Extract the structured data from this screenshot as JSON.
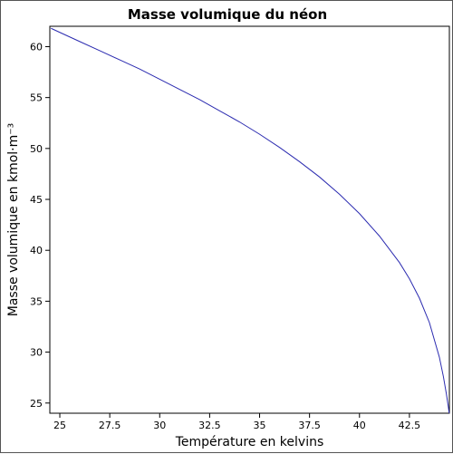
{
  "chart_data": {
    "type": "line",
    "title": "Masse volumique du néon",
    "xlabel": "Température en kelvins",
    "ylabel": "Masse volumique en kmol·m⁻³",
    "xlim": [
      24.5,
      44.5
    ],
    "ylim": [
      24,
      62
    ],
    "xticks": [
      25,
      27.5,
      30,
      32.5,
      35,
      37.5,
      40,
      42.5
    ],
    "xtick_labels": [
      "25",
      "27.5",
      "30",
      "32.5",
      "35",
      "37.5",
      "40",
      "42.5"
    ],
    "yticks": [
      25,
      30,
      35,
      40,
      45,
      50,
      55,
      60
    ],
    "ytick_labels": [
      "25",
      "30",
      "35",
      "40",
      "45",
      "50",
      "55",
      "60"
    ],
    "grid": false,
    "colors": {
      "series": "#2b2bb0"
    },
    "series": [
      {
        "x": [
          24.56,
          25,
          26,
          27,
          28,
          29,
          30,
          31,
          32,
          33,
          34,
          35,
          36,
          37,
          38,
          39,
          40,
          41,
          42,
          42.5,
          43,
          43.5,
          44,
          44.2,
          44.35,
          44.45,
          44.49
        ],
        "y": [
          61.8,
          61.4,
          60.5,
          59.6,
          58.7,
          57.8,
          56.8,
          55.8,
          54.8,
          53.7,
          52.6,
          51.4,
          50.1,
          48.7,
          47.2,
          45.5,
          43.6,
          41.4,
          38.8,
          37.2,
          35.3,
          32.9,
          29.5,
          27.6,
          25.9,
          24.6,
          24.0
        ]
      }
    ]
  }
}
